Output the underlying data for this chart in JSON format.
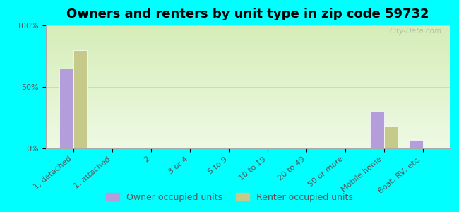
{
  "title": "Owners and renters by unit type in zip code 59732",
  "categories": [
    "1, detached",
    "1, attached",
    "2",
    "3 or 4",
    "5 to 9",
    "10 to 19",
    "20 to 49",
    "50 or more",
    "Mobile home",
    "Boat, RV, etc."
  ],
  "owner_values": [
    65,
    0,
    0,
    0,
    0,
    0,
    0,
    0,
    30,
    7
  ],
  "renter_values": [
    80,
    0,
    0,
    0,
    0,
    0,
    0,
    0,
    18,
    0
  ],
  "owner_color": "#b39ddb",
  "renter_color": "#c5c98a",
  "background_color": "#00ffff",
  "grad_top": "#d6edb8",
  "grad_bottom": "#eefae4",
  "ylim": [
    0,
    100
  ],
  "yticks": [
    0,
    50,
    100
  ],
  "ytick_labels": [
    "0%",
    "50%",
    "100%"
  ],
  "bar_width": 0.35,
  "legend_labels": [
    "Owner occupied units",
    "Renter occupied units"
  ],
  "title_fontsize": 13,
  "tick_fontsize": 8,
  "legend_fontsize": 9,
  "watermark": "City-Data.com"
}
